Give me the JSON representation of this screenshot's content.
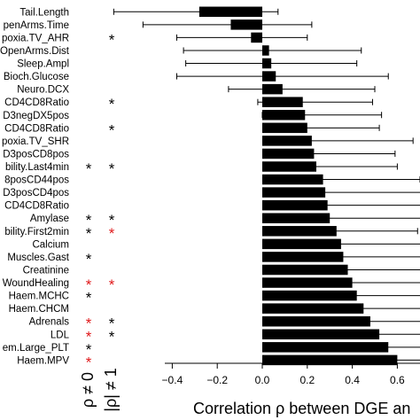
{
  "chart_data": {
    "type": "bar",
    "orientation": "horizontal",
    "title": "",
    "xlabel": "Correlation ρ between DGE an",
    "ylabel": "",
    "xlim": [
      -0.4,
      0.8
    ],
    "xticks": [
      -0.4,
      -0.2,
      0.0,
      0.2,
      0.4,
      0.6
    ],
    "xtick_labels": [
      "−0.4",
      "−0.2",
      "0.0",
      "0.2",
      "0.4",
      "0.6"
    ],
    "grid": false,
    "bar_color": "#000000",
    "star_colors": {
      "black": "#000000",
      "red": "#e0191b"
    },
    "star_columns": [
      "ρ ≠ 0",
      "|ρ| ≠ 1"
    ],
    "categories": [
      "Tail.Length",
      "penArms.Time",
      "poxia.TV_AHR",
      "OpenArms.Dist",
      "Sleep.Ampl",
      "Bioch.Glucose",
      "Neuro.DCX",
      "CD4CD8Ratio",
      "D3negDX5pos",
      "CD4CD8Ratio",
      "poxia.TV_SHR",
      "D3posCD8pos",
      "bility.Last4min",
      "8posCD44pos",
      "D3posCD4pos",
      "CD4CD8Ratio",
      "Amylase",
      "bility.First2min",
      "Calcium",
      "Muscles.Gast",
      "Creatinine",
      "WoundHealing",
      "Haem.MCHC",
      "Haem.CHCM",
      "Adrenals",
      "LDL",
      "em.Large_PLT",
      "Haem.MPV"
    ],
    "values": [
      -0.28,
      -0.14,
      -0.05,
      0.03,
      0.04,
      0.06,
      0.09,
      0.18,
      0.19,
      0.2,
      0.22,
      0.23,
      0.24,
      0.27,
      0.28,
      0.29,
      0.3,
      0.33,
      0.35,
      0.36,
      0.38,
      0.4,
      0.42,
      0.45,
      0.48,
      0.52,
      0.56,
      0.6
    ],
    "ci_low": [
      -0.66,
      -0.53,
      -0.38,
      -0.35,
      -0.34,
      -0.38,
      -0.15,
      -0.02,
      0.0,
      0.03,
      0.06,
      0.08,
      0.08,
      0.12,
      0.15,
      0.14,
      0.2,
      0.22,
      0.26,
      0.26,
      0.28,
      0.3,
      0.33,
      0.36,
      0.4,
      0.44,
      0.48,
      0.52
    ],
    "ci_high": [
      0.07,
      0.22,
      0.2,
      0.44,
      0.42,
      0.56,
      0.5,
      0.49,
      0.53,
      0.52,
      0.67,
      0.59,
      0.6,
      0.71,
      0.8,
      0.8,
      0.8,
      0.69,
      0.8,
      0.8,
      0.8,
      0.8,
      0.8,
      0.8,
      0.8,
      0.8,
      0.8,
      0.8
    ],
    "stars_rho": [
      "",
      "",
      "",
      "",
      "",
      "",
      "",
      "",
      "",
      "",
      "",
      "",
      "black",
      "",
      "",
      "",
      "black",
      "black",
      "",
      "black",
      "",
      "red",
      "black",
      "",
      "red",
      "red",
      "black",
      "red"
    ],
    "stars_abs": [
      "",
      "",
      "black",
      "",
      "",
      "",
      "",
      "black",
      "",
      "black",
      "",
      "",
      "black",
      "",
      "",
      "",
      "black",
      "red",
      "",
      "",
      "",
      "red",
      "",
      "",
      "black",
      "black",
      "",
      ""
    ]
  }
}
